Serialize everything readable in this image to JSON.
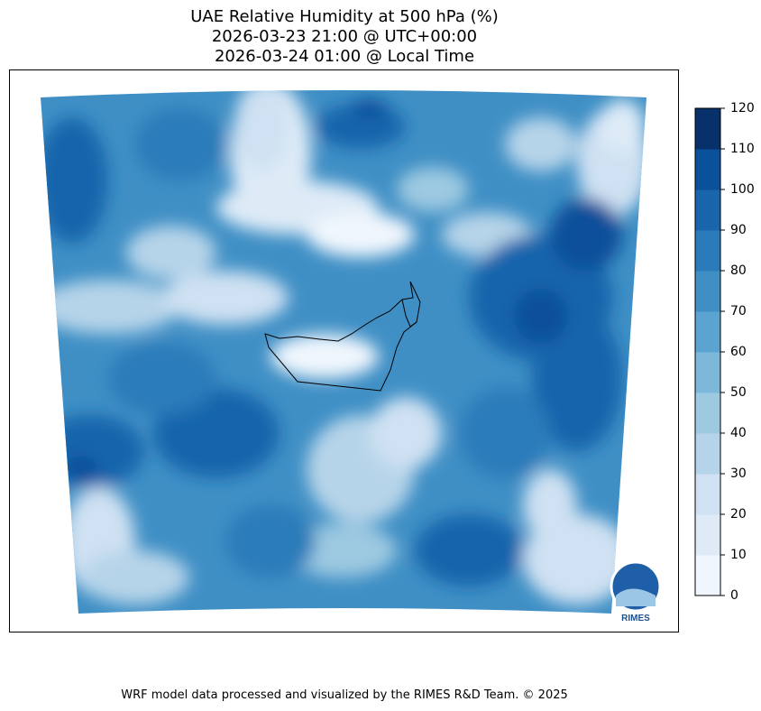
{
  "title": {
    "line1": "UAE Relative Humidity at 500 hPa (%)",
    "line2": "2026-03-23 21:00 @ UTC+00:00",
    "line3": "2026-03-24 01:00 @ Local Time"
  },
  "colorbar": {
    "levels": [
      0,
      10,
      20,
      30,
      40,
      50,
      60,
      70,
      80,
      90,
      100,
      110,
      120
    ],
    "tick_labels": [
      "0",
      "10",
      "20",
      "30",
      "40",
      "50",
      "60",
      "70",
      "80",
      "90",
      "100",
      "110",
      "120"
    ],
    "colors": [
      "#f0f6fd",
      "#deebf7",
      "#cfe1f2",
      "#b6d4e9",
      "#9dc9e1",
      "#7db8da",
      "#5ba3d0",
      "#3f8fc5",
      "#2b7bba",
      "#1865ac",
      "#0a509a",
      "#08306b"
    ]
  },
  "logo": {
    "text": "RIMES"
  },
  "footer": "WRF model data processed and visualized by the RIMES R&D Team. © 2025"
}
